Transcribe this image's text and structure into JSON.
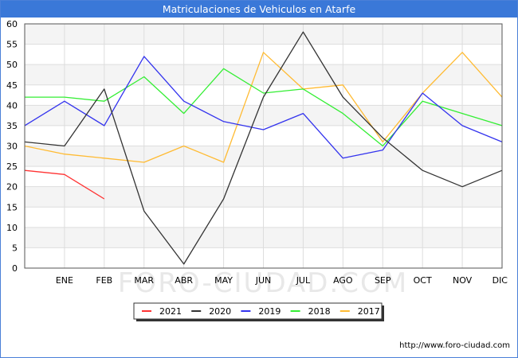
{
  "page": {
    "title": "Matriculaciones de Vehiculos en Atarfe",
    "watermark": "FORO-CIUDAD.COM",
    "footer_url": "http://www.foro-ciudad.com"
  },
  "chart_data": {
    "type": "line",
    "title": "Matriculaciones de Vehiculos en Atarfe",
    "xlabel": "",
    "ylabel": "",
    "ylim": [
      0,
      60
    ],
    "yticks": [
      0,
      5,
      10,
      15,
      20,
      25,
      30,
      35,
      40,
      45,
      50,
      55,
      60
    ],
    "categories": [
      "",
      "ENE",
      "FEB",
      "MAR",
      "ABR",
      "MAY",
      "JUN",
      "JUL",
      "AGO",
      "SEP",
      "OCT",
      "NOV",
      "DIC"
    ],
    "grid": true,
    "legend_position": "bottom-center",
    "series": [
      {
        "name": "2021",
        "color": "#ff3333",
        "values": [
          24,
          23,
          17,
          null,
          null,
          null,
          null,
          null,
          null,
          null,
          null,
          null,
          null
        ]
      },
      {
        "name": "2020",
        "color": "#333333",
        "values": [
          31,
          30,
          44,
          14,
          1,
          17,
          42,
          58,
          42,
          32,
          24,
          20,
          24
        ]
      },
      {
        "name": "2019",
        "color": "#3333ee",
        "values": [
          35,
          41,
          35,
          52,
          41,
          36,
          34,
          38,
          27,
          29,
          43,
          35,
          31
        ]
      },
      {
        "name": "2018",
        "color": "#33ee33",
        "values": [
          42,
          42,
          41,
          47,
          38,
          49,
          43,
          44,
          38,
          30,
          41,
          38,
          35
        ]
      },
      {
        "name": "2017",
        "color": "#ffbb33",
        "values": [
          30,
          28,
          27,
          26,
          30,
          26,
          53,
          44,
          45,
          31,
          43,
          53,
          42
        ]
      }
    ]
  }
}
